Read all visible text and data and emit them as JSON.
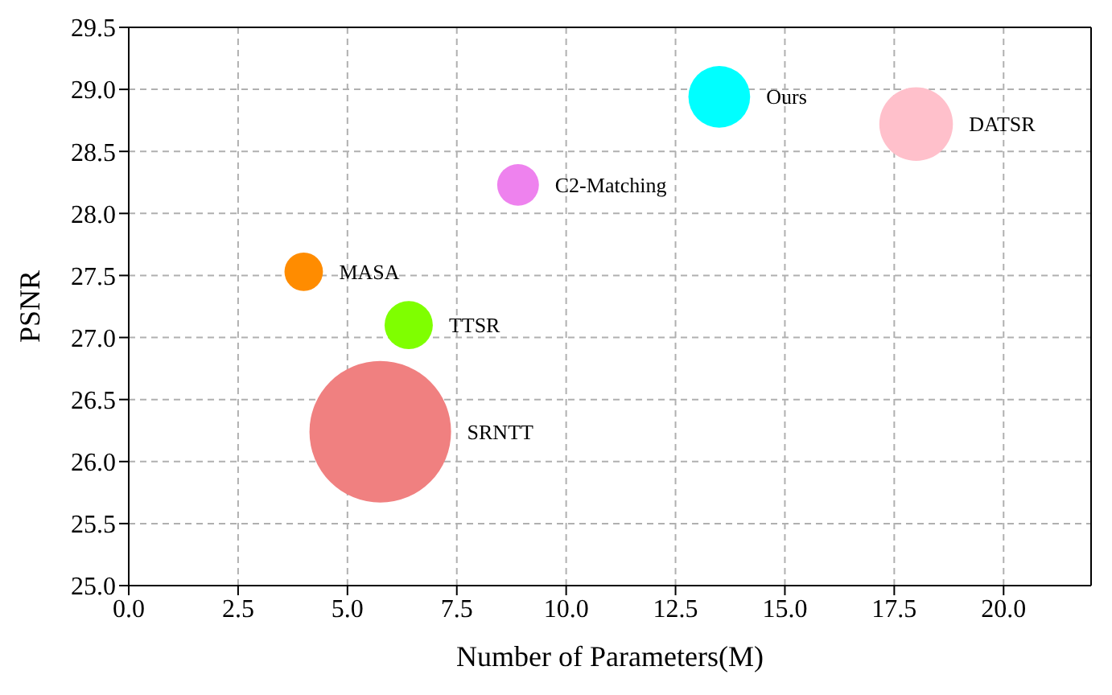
{
  "chart_data": {
    "type": "bubble",
    "xlabel": "Number of Parameters(M)",
    "ylabel": "PSNR",
    "xlim": [
      0,
      22
    ],
    "xticks": [
      {
        "value": 0,
        "label": "0.0"
      },
      2.5,
      {
        "value": 5,
        "label": "5.0"
      },
      7.5,
      {
        "value": 10,
        "label": "10.0"
      },
      12.5,
      {
        "value": 15,
        "label": "15.0"
      },
      17.5,
      {
        "value": 20,
        "label": "20.0"
      }
    ],
    "ylim": [
      25,
      29.5
    ],
    "yticks": [
      {
        "value": 25,
        "label": "25.0"
      },
      25.5,
      {
        "value": 26,
        "label": "26.0"
      },
      26.5,
      {
        "value": 27,
        "label": "27.0"
      },
      27.5,
      {
        "value": 28,
        "label": "28.0"
      },
      28.5,
      {
        "value": 29,
        "label": "29.0"
      },
      29.5
    ],
    "grid": true,
    "series": [
      {
        "name": "Ours",
        "color": "#00ffff",
        "x": [
          13.5
        ],
        "values": [
          28.94
        ],
        "sizes": [
          0.19
        ]
      },
      {
        "name": "DATSR",
        "color": "#ffc0cb",
        "x": [
          18.0
        ],
        "values": [
          28.72
        ],
        "sizes": [
          0.27
        ]
      },
      {
        "name": "C2-Matching",
        "color": "#ee82ee",
        "x": [
          8.9
        ],
        "values": [
          28.23
        ],
        "sizes": [
          0.087
        ]
      },
      {
        "name": "MASA",
        "color": "#ff8c00",
        "x": [
          4.0
        ],
        "values": [
          27.53
        ],
        "sizes": [
          0.074
        ]
      },
      {
        "name": "TTSR",
        "color": "#7fff00",
        "x": [
          6.4
        ],
        "values": [
          27.1
        ],
        "sizes": [
          0.116
        ]
      },
      {
        "name": "SRNTT",
        "color": "#f08080",
        "x": [
          5.75
        ],
        "values": [
          26.24
        ],
        "sizes": [
          1
        ]
      }
    ]
  }
}
